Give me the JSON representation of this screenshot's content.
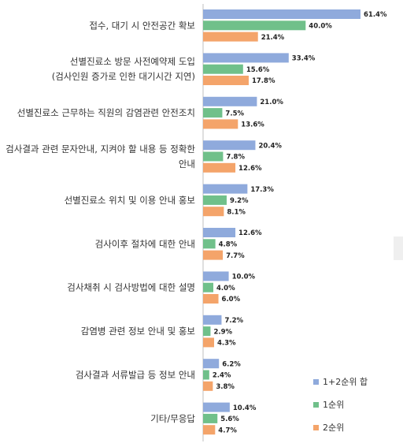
{
  "chart_data": {
    "type": "bar",
    "orientation": "horizontal",
    "categories": [
      [
        "접수, 대기 시 안전공간 확보"
      ],
      [
        "선별진료소 방문 사전예약제 도입",
        "(검사인원 증가로 인한 대기시간 지연)"
      ],
      [
        "선별진료소 근무하는 직원의 감염관련 안전조치"
      ],
      [
        "검사결과 관련 문자안내, 지켜야 할 내용 등 정확한",
        "안내"
      ],
      [
        "선별진료소 위치 및 이용 안내 홍보"
      ],
      [
        "검사이후 절차에 대한 안내"
      ],
      [
        "검사채취 시 검사방법에 대한 설명"
      ],
      [
        "감염병 관련 정보 안내 및 홍보"
      ],
      [
        "검사결과 서류발급 등 정보 안내"
      ],
      [
        "기타/무응답"
      ]
    ],
    "series": [
      {
        "name": "1+2순위 합",
        "color": "#8faadc",
        "values": [
          61.4,
          33.4,
          21.0,
          20.4,
          17.3,
          12.6,
          10.0,
          7.2,
          6.2,
          10.4
        ]
      },
      {
        "name": "1순위",
        "color": "#70c08a",
        "values": [
          40.0,
          15.6,
          7.5,
          7.8,
          9.2,
          4.8,
          4.0,
          2.9,
          2.4,
          5.6
        ]
      },
      {
        "name": "2순위",
        "color": "#f4a46a",
        "values": [
          21.4,
          17.8,
          13.6,
          12.6,
          8.1,
          7.7,
          6.0,
          4.3,
          3.8,
          4.7
        ]
      }
    ],
    "value_suffix": "%",
    "xlim": [
      0,
      70
    ],
    "legend_position": "bottom-right",
    "grid": false
  }
}
